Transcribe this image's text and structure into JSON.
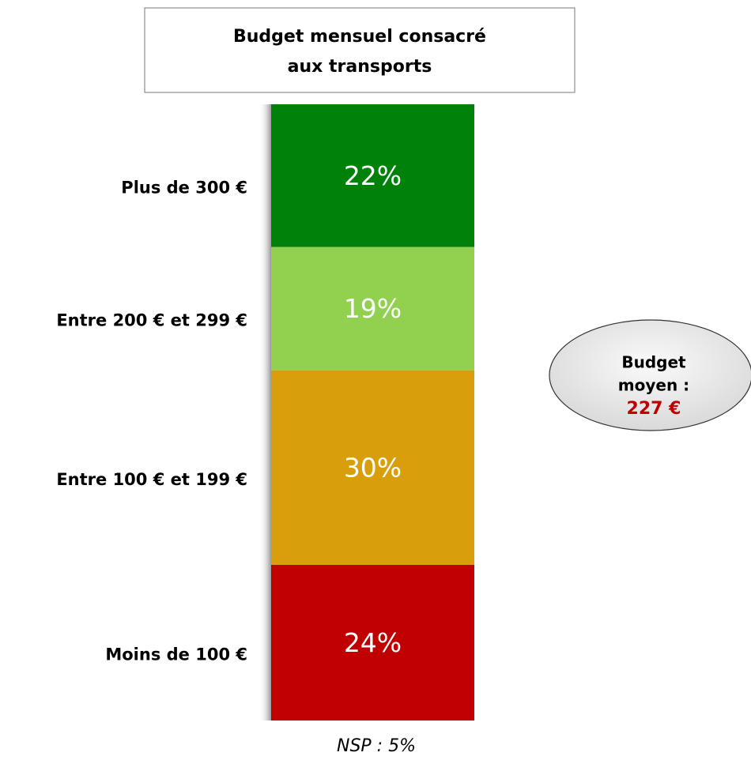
{
  "chart_data": {
    "type": "stacked_bar",
    "title": [
      "Budget mensuel consacré",
      "aux transports"
    ],
    "series": [
      {
        "name": "Moins de 100 €",
        "color": "#c00000",
        "values": [
          24
        ],
        "value_labels": [
          "24%"
        ]
      },
      {
        "name": "Entre 100 € et 199 €",
        "color": "#d99e0b",
        "values": [
          30
        ],
        "value_labels": [
          "30%"
        ]
      },
      {
        "name": "Entre 200 € et 299 €",
        "color": "#92d050",
        "values": [
          19
        ],
        "value_labels": [
          "19%"
        ]
      },
      {
        "name": "Plus de 300 €",
        "color": "#00820a",
        "values": [
          22
        ],
        "value_labels": [
          "22%"
        ]
      }
    ],
    "annotation": {
      "lines": [
        "Budget",
        "moyen :"
      ],
      "value": "227 €"
    },
    "footnote": "NSP : 5%"
  }
}
